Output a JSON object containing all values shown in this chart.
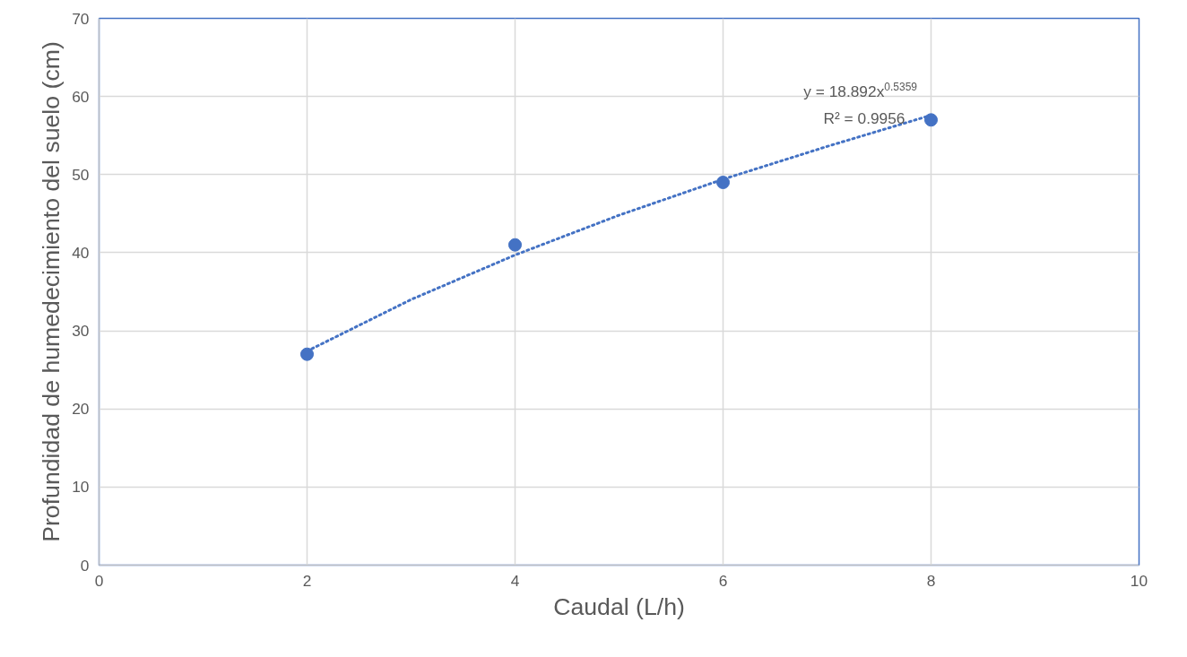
{
  "chart_data": {
    "type": "scatter",
    "xlabel": "Caudal (L/h)",
    "ylabel": "Profundidad de humedecimiento del suelo (cm)",
    "xlim": [
      0,
      10
    ],
    "xticks": [
      0,
      2,
      4,
      6,
      8,
      10
    ],
    "ylim": [
      0,
      70
    ],
    "yticks": [
      0,
      10,
      20,
      30,
      40,
      50,
      60,
      70
    ],
    "grid": true,
    "marker": "circle",
    "series": [
      {
        "color": "#4472c4",
        "x": [
          2,
          4,
          6,
          8
        ],
        "values": [
          27,
          41,
          49,
          57
        ]
      },
      {
        "type": "line",
        "color": "#4472c4",
        "line_style": "dotted",
        "marker": "none",
        "x": [
          2,
          3,
          4,
          5,
          6,
          7,
          8
        ],
        "values": [
          27.4,
          34.0,
          39.7,
          44.8,
          49.4,
          53.6,
          57.6
        ]
      }
    ],
    "annotations": [
      "y = 18.892x$^{0.5359}$",
      "R² = 0.9956"
    ]
  }
}
